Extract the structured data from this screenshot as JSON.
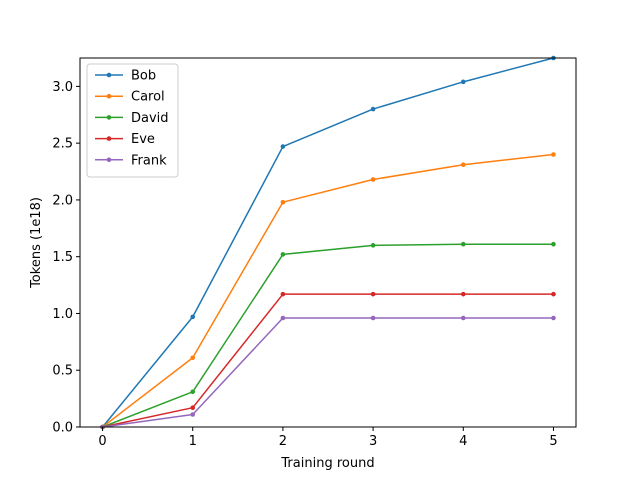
{
  "chart_data": {
    "type": "line",
    "title": "",
    "xlabel": "Training round",
    "ylabel": "Tokens (1e18)",
    "x": [
      0,
      1,
      2,
      3,
      4,
      5
    ],
    "xlim": [
      -0.25,
      5.25
    ],
    "ylim": [
      0,
      3.25
    ],
    "xticks": [
      "0",
      "1",
      "2",
      "3",
      "4",
      "5"
    ],
    "yticks": [
      "0.0",
      "0.5",
      "1.0",
      "1.5",
      "2.0",
      "2.5",
      "3.0"
    ],
    "ytick_values": [
      0,
      0.5,
      1.0,
      1.5,
      2.0,
      2.5,
      3.0
    ],
    "grid": false,
    "legend_position": "top-left",
    "marker": "circle",
    "series": [
      {
        "name": "Bob",
        "color": "#1f77b4",
        "values": [
          0,
          0.97,
          2.47,
          2.8,
          3.04,
          3.25
        ]
      },
      {
        "name": "Carol",
        "color": "#ff7f0e",
        "values": [
          0,
          0.61,
          1.98,
          2.18,
          2.31,
          2.4
        ]
      },
      {
        "name": "David",
        "color": "#2ca02c",
        "values": [
          0,
          0.31,
          1.52,
          1.6,
          1.61,
          1.61
        ]
      },
      {
        "name": "Eve",
        "color": "#d62728",
        "values": [
          0,
          0.17,
          1.17,
          1.17,
          1.17,
          1.17
        ]
      },
      {
        "name": "Frank",
        "color": "#9467bd",
        "values": [
          0,
          0.11,
          0.96,
          0.96,
          0.96,
          0.96
        ]
      }
    ]
  }
}
